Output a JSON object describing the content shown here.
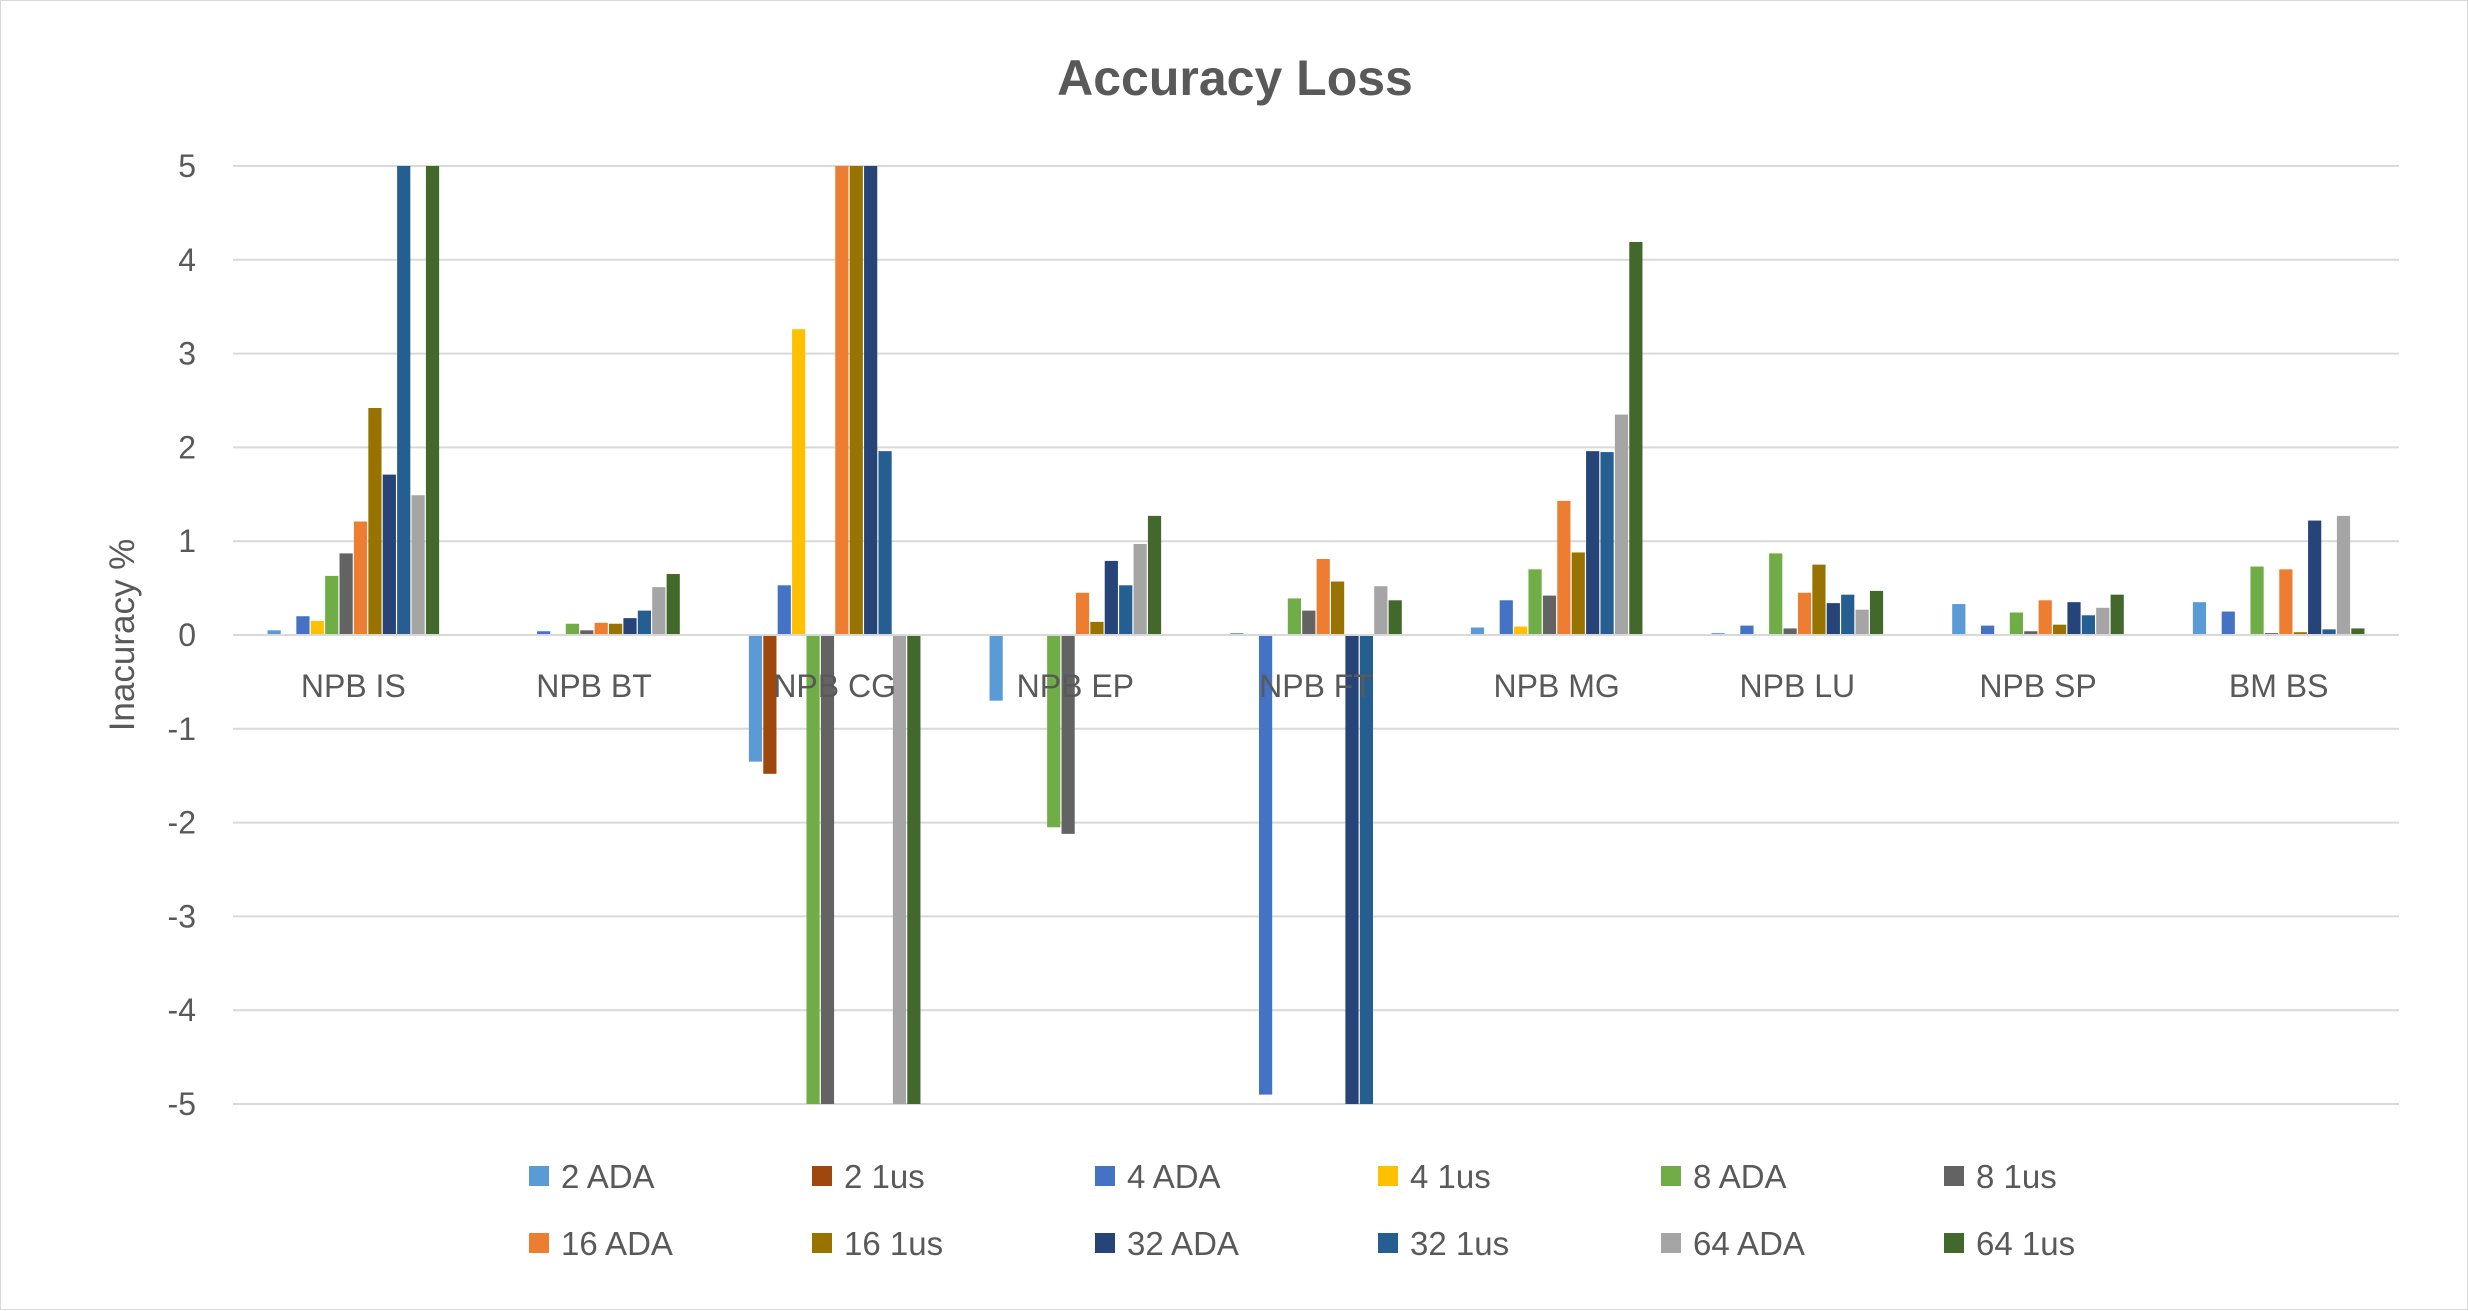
{
  "chart_data": {
    "type": "bar",
    "title": "Accuracy Loss",
    "xlabel": "",
    "ylabel": "Inacuracy %",
    "ylim": [
      -5,
      5
    ],
    "yticks": [
      5,
      4,
      3,
      2,
      1,
      0,
      -1,
      -2,
      -3,
      -4,
      -5
    ],
    "grid": true,
    "legend_position": "bottom",
    "categories": [
      "NPB IS",
      "NPB BT",
      "NPB CG",
      "NPB EP",
      "NPB FT",
      "NPB MG",
      "NPB LU",
      "NPB SP",
      "BM BS"
    ],
    "series": [
      {
        "name": "2 ADA",
        "color": "#5B9BD5",
        "values": [
          0.05,
          0.0,
          -1.35,
          -0.7,
          0.02,
          0.08,
          0.02,
          0.33,
          0.35
        ]
      },
      {
        "name": "2 1us",
        "color": "#9E480E",
        "values": [
          0.0,
          0.0,
          -1.48,
          0.0,
          0.0,
          0.0,
          0.0,
          0.0,
          0.0
        ]
      },
      {
        "name": "4 ADA",
        "color": "#4472C4",
        "values": [
          0.2,
          0.04,
          0.53,
          0.0,
          -4.9,
          0.37,
          0.1,
          0.1,
          0.25
        ]
      },
      {
        "name": "4 1us",
        "color": "#FFC000",
        "values": [
          0.15,
          0.0,
          3.26,
          0.0,
          0.0,
          0.09,
          0.0,
          0.0,
          0.0
        ]
      },
      {
        "name": "8 ADA",
        "color": "#70AD47",
        "values": [
          0.63,
          0.12,
          -5,
          -2.05,
          0.39,
          0.7,
          0.87,
          0.24,
          0.73
        ]
      },
      {
        "name": "8 1us",
        "color": "#636363",
        "values": [
          0.87,
          0.05,
          -5,
          -2.12,
          0.26,
          0.42,
          0.07,
          0.04,
          0.02
        ]
      },
      {
        "name": "16 ADA",
        "color": "#ED7D31",
        "values": [
          1.21,
          0.13,
          5,
          0.45,
          0.81,
          1.43,
          0.45,
          0.37,
          0.7
        ]
      },
      {
        "name": "16 1us",
        "color": "#997300",
        "values": [
          2.42,
          0.12,
          5,
          0.14,
          0.57,
          0.88,
          0.75,
          0.11,
          0.03
        ]
      },
      {
        "name": "32 ADA",
        "color": "#264478",
        "values": [
          1.71,
          0.18,
          5,
          0.79,
          -5,
          1.96,
          0.34,
          0.35,
          1.22
        ]
      },
      {
        "name": "32 1us",
        "color": "#255E91",
        "values": [
          5,
          0.26,
          1.96,
          0.53,
          -5,
          1.95,
          0.43,
          0.21,
          0.06
        ]
      },
      {
        "name": "64 ADA",
        "color": "#A5A5A5",
        "values": [
          1.49,
          0.51,
          -5,
          0.97,
          0.52,
          2.35,
          0.27,
          0.29,
          1.27
        ]
      },
      {
        "name": "64 1us",
        "color": "#43682B",
        "values": [
          5,
          0.65,
          -5,
          1.27,
          0.37,
          4.19,
          0.47,
          0.43,
          0.07
        ]
      }
    ]
  }
}
